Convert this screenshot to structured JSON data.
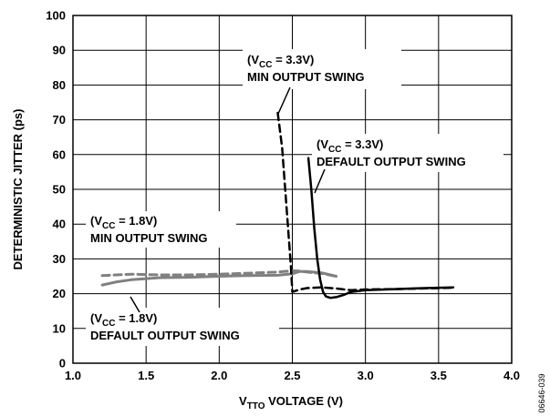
{
  "chart_data": {
    "type": "line",
    "xlabel": {
      "main": "V",
      "sub": "TTO",
      "rest": " VOLTAGE (V)"
    },
    "ylabel": "DETERMINISTIC JITTER (ps)",
    "xlim": [
      1.0,
      4.0
    ],
    "ylim": [
      0,
      100
    ],
    "x_ticks": [
      "1.0",
      "1.5",
      "2.0",
      "2.5",
      "3.0",
      "3.5",
      "4.0"
    ],
    "y_ticks": [
      "0",
      "10",
      "20",
      "30",
      "40",
      "50",
      "60",
      "70",
      "80",
      "90",
      "100"
    ],
    "grid": true,
    "series": [
      {
        "label": "vcc18-min",
        "color": "#808080",
        "dash": "dashed",
        "x": [
          1.2,
          1.4,
          1.6,
          1.8,
          2.0,
          2.2,
          2.4,
          2.5,
          2.55,
          2.62,
          2.7,
          2.8
        ],
        "y": [
          25.2,
          25.6,
          25.4,
          25.4,
          25.6,
          25.9,
          26.2,
          26.6,
          26.5,
          26.1,
          25.8,
          25.0
        ]
      },
      {
        "label": "vcc18-default",
        "color": "#808080",
        "dash": "solid",
        "x": [
          1.2,
          1.3,
          1.4,
          1.6,
          1.8,
          2.0,
          2.2,
          2.4,
          2.5,
          2.55,
          2.6,
          2.7,
          2.8
        ],
        "y": [
          22.5,
          23.4,
          24.0,
          24.6,
          24.7,
          25.0,
          25.2,
          25.3,
          25.7,
          26.4,
          26.4,
          26.0,
          25.0
        ]
      },
      {
        "label": "vcc33-min",
        "color": "#000000",
        "dash": "dashed",
        "x": [
          2.4,
          2.43,
          2.46,
          2.49,
          2.5,
          2.55,
          2.6,
          2.7,
          2.8,
          2.9,
          3.0,
          3.2,
          3.4,
          3.6
        ],
        "y": [
          72.0,
          62.0,
          45.0,
          28.0,
          20.5,
          21.2,
          21.6,
          21.8,
          21.5,
          21.0,
          21.2,
          21.3,
          21.5,
          21.7
        ]
      },
      {
        "label": "vcc33-default",
        "color": "#000000",
        "dash": "solid",
        "x": [
          2.61,
          2.63,
          2.65,
          2.67,
          2.69,
          2.71,
          2.73,
          2.76,
          2.8,
          2.85,
          2.9,
          3.0,
          3.2,
          3.4,
          3.6
        ],
        "y": [
          59.0,
          50.0,
          39.0,
          30.0,
          24.0,
          20.5,
          19.2,
          18.8,
          19.0,
          19.6,
          20.5,
          21.0,
          21.3,
          21.6,
          21.8
        ]
      }
    ],
    "annotations": [
      {
        "id": "ann-vcc33-min",
        "line1": {
          "pre": "(V",
          "sub": "CC",
          "post": " = 3.3V)"
        },
        "line2": "MIN OUTPUT SWING"
      },
      {
        "id": "ann-vcc33-default",
        "line1": {
          "pre": "(V",
          "sub": "CC",
          "post": " = 3.3V)"
        },
        "line2": "DEFAULT OUTPUT SWING"
      },
      {
        "id": "ann-vcc18-min",
        "line1": {
          "pre": "(V",
          "sub": "CC",
          "post": " = 1.8V)"
        },
        "line2": "MIN OUTPUT SWING"
      },
      {
        "id": "ann-vcc18-default",
        "line1": {
          "pre": "(V",
          "sub": "CC",
          "post": " = 1.8V)"
        },
        "line2": "DEFAULT OUTPUT SWING"
      }
    ],
    "figure_code": "06646-039"
  }
}
